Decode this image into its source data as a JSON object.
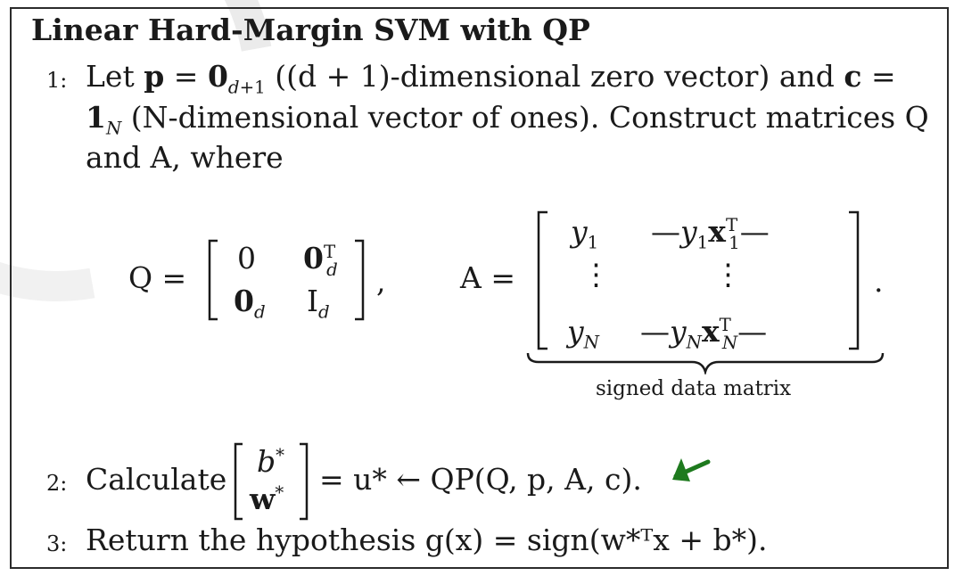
{
  "algorithm": {
    "title": "Linear Hard-Margin SVM with QP",
    "steps": [
      {
        "number": "1:",
        "line1_prefix": "Let",
        "line1_rest": "((d + 1)-dimensional zero vector) and",
        "line2_rest": "(N-dimensional vector of ones). Construct matrices Q",
        "line3": "and A, where"
      },
      {
        "number": "2:",
        "prefix": "Calculate",
        "rest": "= u* ← QP(Q, p, A, c)."
      },
      {
        "number": "3:",
        "text": "Return the hypothesis g(x) = sign(w*ᵀx + b*)."
      }
    ],
    "matrix_Q_label": "Q =",
    "matrix_A_label": "A =",
    "underbrace_label": "signed data matrix"
  },
  "colors": {
    "annotation_arrow": "#1e7a1e",
    "watermark": "#e3e3e3"
  }
}
